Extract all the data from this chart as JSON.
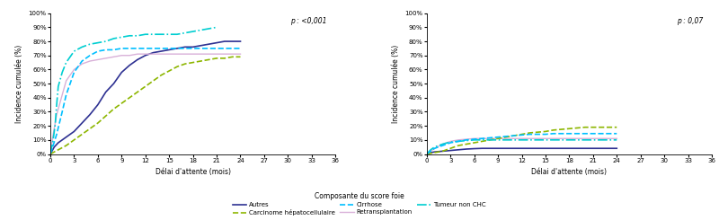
{
  "p_left": "p : <0,001",
  "p_right": "p : 0,07",
  "xlabel": "Délai d'attente (mois)",
  "ylabel": "Incidence cumulée (%)",
  "legend_title": "Composante du score foie",
  "xticks": [
    0,
    3,
    6,
    9,
    12,
    15,
    18,
    21,
    24,
    27,
    30,
    33,
    36
  ],
  "yticks": [
    0,
    10,
    20,
    30,
    40,
    50,
    60,
    70,
    80,
    90,
    100
  ],
  "ylim": [
    0,
    100
  ],
  "xlim": [
    0,
    36
  ],
  "series_left": {
    "Autres": {
      "x": [
        0,
        0.5,
        1,
        1.5,
        2,
        3,
        4,
        5,
        6,
        7,
        8,
        9,
        10,
        11,
        12,
        13,
        14,
        15,
        16,
        17,
        18,
        19,
        20,
        21,
        22,
        23,
        24
      ],
      "y": [
        0,
        5,
        8,
        10,
        12,
        16,
        22,
        28,
        35,
        44,
        50,
        58,
        63,
        67,
        70,
        72,
        73,
        74,
        75,
        76,
        76,
        77,
        78,
        79,
        80,
        80,
        80
      ],
      "color": "#2E3192",
      "linestyle": "solid",
      "linewidth": 1.2
    },
    "Retransplantation": {
      "x": [
        0,
        0.3,
        0.8,
        1.5,
        2,
        3,
        4,
        5,
        6,
        7,
        8,
        9,
        10,
        11,
        12,
        13,
        14,
        15,
        16,
        17,
        18,
        19,
        20,
        21,
        22,
        23,
        24
      ],
      "y": [
        0,
        12,
        28,
        42,
        52,
        60,
        64,
        66,
        67,
        68,
        69,
        70,
        70,
        71,
        71,
        71,
        71,
        71,
        71,
        71,
        71,
        71,
        71,
        71,
        71,
        71,
        71
      ],
      "color": "#D8B0D8",
      "linestyle": "solid",
      "linewidth": 1.0
    },
    "Carcinome": {
      "x": [
        0,
        1,
        2,
        3,
        4,
        5,
        6,
        7,
        8,
        9,
        10,
        11,
        12,
        13,
        14,
        15,
        16,
        17,
        18,
        19,
        20,
        21,
        22,
        23,
        24
      ],
      "y": [
        0,
        3,
        6,
        10,
        14,
        18,
        22,
        27,
        32,
        36,
        40,
        44,
        48,
        52,
        56,
        59,
        62,
        64,
        65,
        66,
        67,
        68,
        68,
        69,
        69
      ],
      "color": "#8DB600",
      "linestyle": "dashed",
      "linewidth": 1.2
    },
    "Tumeur": {
      "x": [
        0,
        0.3,
        0.6,
        0.8,
        1,
        1.5,
        2,
        3,
        4,
        5,
        6,
        7,
        8,
        9,
        10,
        11,
        12,
        13,
        14,
        15,
        16,
        17,
        18,
        19,
        20,
        21
      ],
      "y": [
        0,
        8,
        20,
        35,
        48,
        58,
        65,
        73,
        76,
        78,
        79,
        80,
        82,
        83,
        84,
        84,
        85,
        85,
        85,
        85,
        85,
        86,
        87,
        88,
        89,
        90
      ],
      "color": "#00CED1",
      "linestyle": "dashdot",
      "linewidth": 1.2
    },
    "Cirrhose": {
      "x": [
        0,
        0.3,
        0.8,
        1.5,
        2,
        3,
        4,
        5,
        6,
        7,
        8,
        9,
        10,
        11,
        12,
        13,
        14,
        15,
        16,
        17,
        18,
        19,
        20,
        21,
        22,
        23,
        24
      ],
      "y": [
        0,
        5,
        14,
        30,
        42,
        58,
        66,
        70,
        73,
        74,
        74,
        75,
        75,
        75,
        75,
        75,
        75,
        75,
        75,
        75,
        75,
        75,
        75,
        75,
        75,
        75,
        75
      ],
      "color": "#00BFFF",
      "linestyle": "dashed",
      "linewidth": 1.2
    }
  },
  "series_right": {
    "Autres": {
      "x": [
        0,
        0.5,
        1,
        2,
        3,
        4,
        5,
        6,
        7,
        8,
        9,
        10,
        11,
        12,
        13,
        14,
        15,
        16,
        17,
        18,
        19,
        20,
        21,
        22,
        23,
        24
      ],
      "y": [
        0,
        1,
        1.5,
        2,
        2.5,
        3,
        3.5,
        3.8,
        4,
        4,
        4,
        4,
        4,
        4,
        4,
        4,
        4,
        4,
        4,
        4,
        4,
        4,
        4,
        4,
        4,
        4
      ],
      "color": "#2E3192",
      "linestyle": "solid",
      "linewidth": 1.2
    },
    "Retransplantation": {
      "x": [
        0,
        0.5,
        1,
        2,
        3,
        4,
        5,
        6,
        7,
        8,
        9,
        10,
        11,
        12,
        13,
        14,
        15,
        16,
        17,
        18,
        19,
        20,
        21,
        22,
        23,
        24
      ],
      "y": [
        0,
        2,
        4,
        7,
        9,
        10,
        10.5,
        11,
        11,
        11,
        11,
        11,
        11,
        11,
        11,
        11,
        11,
        11,
        11,
        11,
        11,
        11,
        11,
        11,
        11,
        11
      ],
      "color": "#D8B0D8",
      "linestyle": "solid",
      "linewidth": 1.0
    },
    "Carcinome": {
      "x": [
        0,
        1,
        2,
        3,
        4,
        5,
        6,
        7,
        8,
        9,
        10,
        11,
        12,
        13,
        14,
        15,
        16,
        17,
        18,
        19,
        20,
        21,
        22,
        23,
        24
      ],
      "y": [
        0,
        1,
        2,
        4,
        6,
        7,
        8,
        9,
        10,
        11,
        12,
        13,
        14,
        15,
        15.5,
        16,
        17,
        17.5,
        18,
        18.5,
        19,
        19,
        19,
        19,
        19
      ],
      "color": "#8DB600",
      "linestyle": "dashed",
      "linewidth": 1.2
    },
    "Tumeur": {
      "x": [
        0,
        0.5,
        1,
        2,
        3,
        4,
        5,
        6,
        7,
        8,
        9,
        10,
        11,
        12,
        13,
        14,
        15,
        16,
        17,
        18,
        19,
        20,
        21,
        22,
        23,
        24
      ],
      "y": [
        0,
        3,
        5,
        7,
        8.5,
        9,
        9.5,
        10,
        10,
        10,
        10,
        10,
        10,
        10,
        10,
        10,
        10,
        10,
        10,
        10,
        10,
        10,
        10,
        10,
        10,
        10
      ],
      "color": "#00CED1",
      "linestyle": "dashdot",
      "linewidth": 1.2
    },
    "Cirrhose": {
      "x": [
        0,
        0.5,
        1,
        2,
        3,
        4,
        5,
        6,
        7,
        8,
        9,
        10,
        11,
        12,
        13,
        14,
        15,
        16,
        17,
        18,
        19,
        20,
        21,
        22,
        23,
        24
      ],
      "y": [
        0,
        2,
        4,
        6,
        8,
        9,
        10,
        10.5,
        11,
        11.5,
        12,
        12.5,
        13,
        13.5,
        14,
        14,
        14,
        14.5,
        14.5,
        14.5,
        14.5,
        14.5,
        14.5,
        14.5,
        14.5,
        14.5
      ],
      "color": "#00BFFF",
      "linestyle": "dashed",
      "linewidth": 1.2
    }
  },
  "colors": {
    "Autres": "#2E3192",
    "Retransplantation": "#D8B0D8",
    "Carcinome": "#8DB600",
    "Tumeur": "#00CED1",
    "Cirrhose": "#00BFFF"
  },
  "linestyles": {
    "Autres": "solid",
    "Retransplantation": "solid",
    "Carcinome": "dashed",
    "Tumeur": "dashdot",
    "Cirrhose": "dashed"
  },
  "linewidths": {
    "Autres": 1.2,
    "Retransplantation": 1.0,
    "Carcinome": 1.2,
    "Tumeur": 1.2,
    "Cirrhose": 1.2
  },
  "legend_labels": {
    "Autres": "Autres",
    "Retransplantation": "Retransplantation",
    "Carcinome": "Carcinome hépatocellulaire",
    "Tumeur": "Tumeur non CHC",
    "Cirrhose": "Cirrhose"
  },
  "fontsize_axis": 5.5,
  "fontsize_tick": 5.0,
  "fontsize_legend_title": 5.5,
  "fontsize_legend": 5.0,
  "fontsize_pval": 5.5
}
